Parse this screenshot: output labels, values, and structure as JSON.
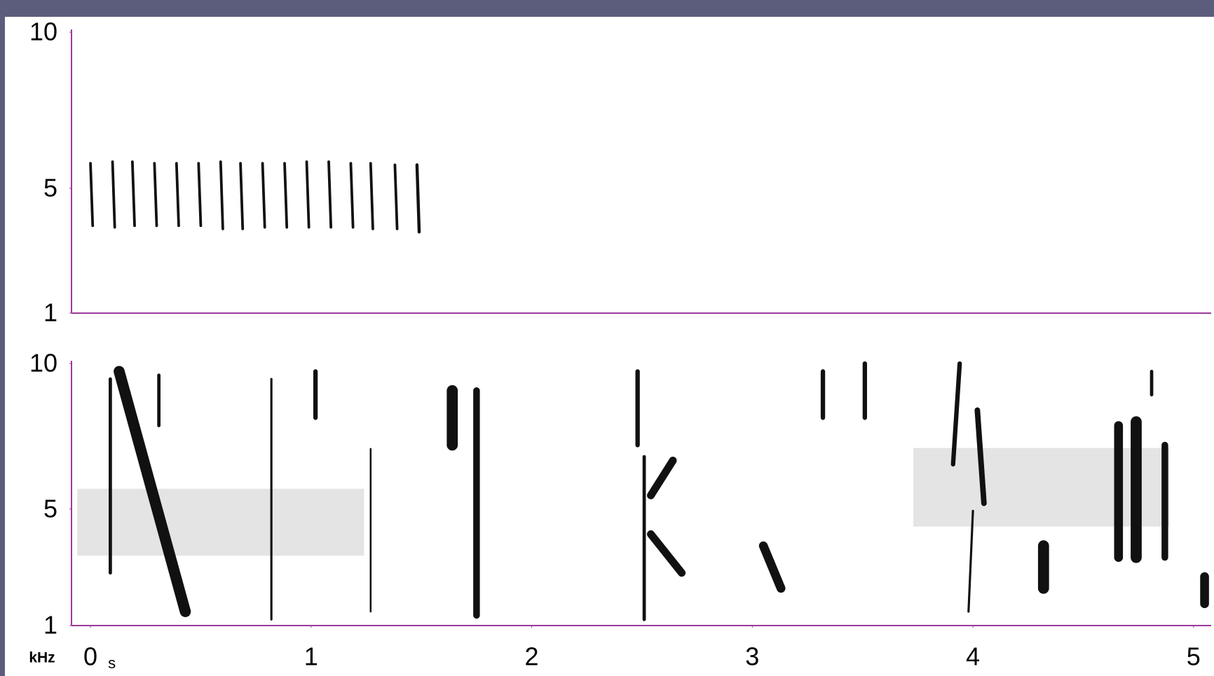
{
  "chart_data": [
    {
      "type": "spectrogram",
      "xlim": [
        -0.086,
        5.08
      ],
      "ylim": [
        1,
        10
      ],
      "yticks": [
        10,
        5,
        1
      ],
      "color": "#111111",
      "axis_color": "#9b3a9b",
      "events": [
        {
          "t": [
            0.0,
            0.01
          ],
          "f": [
            5.8,
            3.8
          ],
          "w": 0.012
        },
        {
          "t": [
            0.1,
            0.11
          ],
          "f": [
            5.85,
            3.75
          ],
          "w": 0.012
        },
        {
          "t": [
            0.19,
            0.2
          ],
          "f": [
            5.85,
            3.8
          ],
          "w": 0.012
        },
        {
          "t": [
            0.29,
            0.3
          ],
          "f": [
            5.8,
            3.8
          ],
          "w": 0.012
        },
        {
          "t": [
            0.39,
            0.4
          ],
          "f": [
            5.8,
            3.8
          ],
          "w": 0.012
        },
        {
          "t": [
            0.49,
            0.5
          ],
          "f": [
            5.8,
            3.8
          ],
          "w": 0.012
        },
        {
          "t": [
            0.59,
            0.6
          ],
          "f": [
            5.85,
            3.7
          ],
          "w": 0.012
        },
        {
          "t": [
            0.68,
            0.69
          ],
          "f": [
            5.8,
            3.7
          ],
          "w": 0.012
        },
        {
          "t": [
            0.78,
            0.79
          ],
          "f": [
            5.8,
            3.75
          ],
          "w": 0.012
        },
        {
          "t": [
            0.88,
            0.89
          ],
          "f": [
            5.8,
            3.75
          ],
          "w": 0.012
        },
        {
          "t": [
            0.98,
            0.99
          ],
          "f": [
            5.85,
            3.75
          ],
          "w": 0.012
        },
        {
          "t": [
            1.08,
            1.09
          ],
          "f": [
            5.85,
            3.75
          ],
          "w": 0.012
        },
        {
          "t": [
            1.18,
            1.19
          ],
          "f": [
            5.8,
            3.75
          ],
          "w": 0.012
        },
        {
          "t": [
            1.27,
            1.28
          ],
          "f": [
            5.8,
            3.7
          ],
          "w": 0.012
        },
        {
          "t": [
            1.38,
            1.39
          ],
          "f": [
            5.75,
            3.7
          ],
          "w": 0.012
        },
        {
          "t": [
            1.48,
            1.49
          ],
          "f": [
            5.75,
            3.6
          ],
          "w": 0.014
        }
      ]
    },
    {
      "type": "spectrogram",
      "xlim": [
        -0.086,
        5.08
      ],
      "ylim": [
        1,
        10
      ],
      "yticks": [
        10,
        5,
        1
      ],
      "xticks": [
        0,
        1,
        2,
        3,
        4,
        5
      ],
      "x_label": "s",
      "y_label": "kHz",
      "color": "#111111",
      "axis_color": "#9b3a9b",
      "band_color": "#c4c4c4",
      "bands": [
        {
          "t": [
            -0.06,
            1.24
          ],
          "f": [
            5.7,
            3.4
          ]
        },
        {
          "t": [
            3.73,
            4.89
          ],
          "f": [
            7.1,
            4.4
          ]
        }
      ],
      "events": [
        {
          "t": [
            0.13,
            0.43
          ],
          "f": [
            9.73,
            1.48
          ],
          "w": 0.05
        },
        {
          "t": [
            0.09,
            0.09
          ],
          "f": [
            9.47,
            2.81
          ],
          "w": 0.015
        },
        {
          "t": [
            0.31,
            0.31
          ],
          "f": [
            9.6,
            7.87
          ],
          "w": 0.015
        },
        {
          "t": [
            0.82,
            0.82
          ],
          "f": [
            9.47,
            1.21
          ],
          "w": 0.01
        },
        {
          "t": [
            1.02,
            1.02
          ],
          "f": [
            9.73,
            8.14
          ],
          "w": 0.02
        },
        {
          "t": [
            1.27,
            1.27
          ],
          "f": [
            7.07,
            1.48
          ],
          "w": 0.008
        },
        {
          "t": [
            1.64,
            1.64
          ],
          "f": [
            9.07,
            7.2
          ],
          "w": 0.05
        },
        {
          "t": [
            1.75,
            1.75
          ],
          "f": [
            9.07,
            1.35
          ],
          "w": 0.03
        },
        {
          "t": [
            2.48,
            2.48
          ],
          "f": [
            9.73,
            7.2
          ],
          "w": 0.02
        },
        {
          "t": [
            2.51,
            2.51
          ],
          "f": [
            6.8,
            1.21
          ],
          "w": 0.015
        },
        {
          "t": [
            2.54,
            2.64
          ],
          "f": [
            5.47,
            6.67
          ],
          "w": 0.035
        },
        {
          "t": [
            2.54,
            2.68
          ],
          "f": [
            4.14,
            2.81
          ],
          "w": 0.035
        },
        {
          "t": [
            3.05,
            3.13
          ],
          "f": [
            3.74,
            2.28
          ],
          "w": 0.04
        },
        {
          "t": [
            3.32,
            3.32
          ],
          "f": [
            9.73,
            8.14
          ],
          "w": 0.02
        },
        {
          "t": [
            3.51,
            3.51
          ],
          "f": [
            10,
            8.14
          ],
          "w": 0.02
        },
        {
          "t": [
            3.94,
            3.91
          ],
          "f": [
            10,
            6.54
          ],
          "w": 0.02
        },
        {
          "t": [
            4.02,
            4.05
          ],
          "f": [
            8.4,
            5.2
          ],
          "w": 0.025
        },
        {
          "t": [
            4.0,
            3.98
          ],
          "f": [
            4.94,
            1.48
          ],
          "w": 0.01
        },
        {
          "t": [
            4.66,
            4.66
          ],
          "f": [
            7.87,
            3.34
          ],
          "w": 0.04
        },
        {
          "t": [
            4.74,
            4.74
          ],
          "f": [
            8.0,
            3.34
          ],
          "w": 0.05
        },
        {
          "t": [
            4.87,
            4.87
          ],
          "f": [
            7.2,
            3.34
          ],
          "w": 0.03
        },
        {
          "t": [
            4.32,
            4.32
          ],
          "f": [
            3.74,
            2.28
          ],
          "w": 0.05
        },
        {
          "t": [
            4.81,
            4.81
          ],
          "f": [
            9.73,
            8.93
          ],
          "w": 0.015
        },
        {
          "t": [
            5.05,
            5.05
          ],
          "f": [
            2.68,
            1.75
          ],
          "w": 0.04
        }
      ]
    }
  ]
}
